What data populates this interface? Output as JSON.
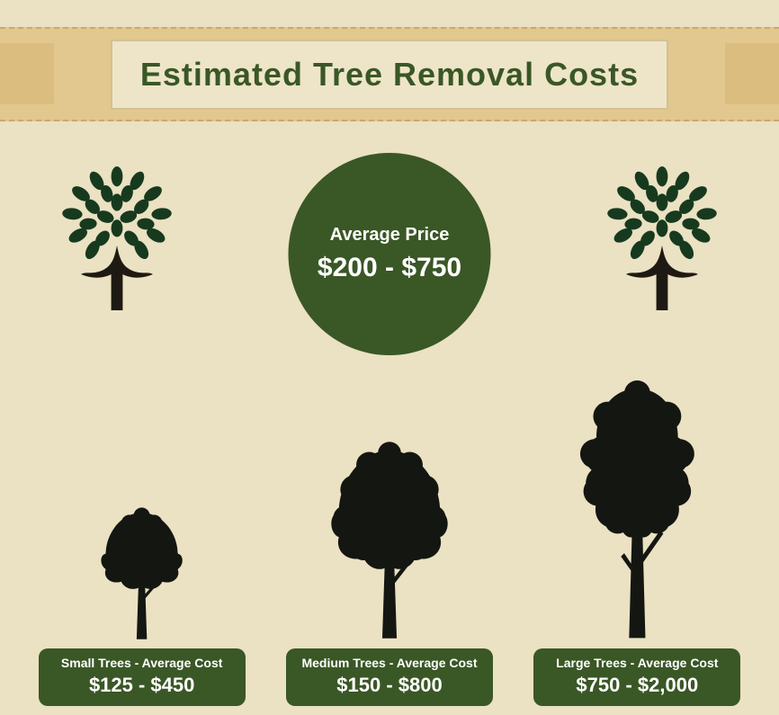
{
  "colors": {
    "green_dark": "#3a5726",
    "green_deep": "#2f4a1f",
    "title": "#3a5726",
    "silhouette": "#141611",
    "leaf_dark": "#173a1e",
    "trunk": "#1e1a13"
  },
  "title": "Estimated Tree Removal Costs",
  "average": {
    "label": "Average Price",
    "price": "$200 - $750"
  },
  "categories": [
    {
      "label": "Small Trees - Average Cost",
      "price": "$125 - $450",
      "tree_height": 160
    },
    {
      "label": "Medium Trees - Average Cost",
      "price": "$150 - $800",
      "tree_height": 225
    },
    {
      "label": "Large Trees - Average Cost",
      "price": "$750 - $2,000",
      "tree_height": 290
    }
  ]
}
